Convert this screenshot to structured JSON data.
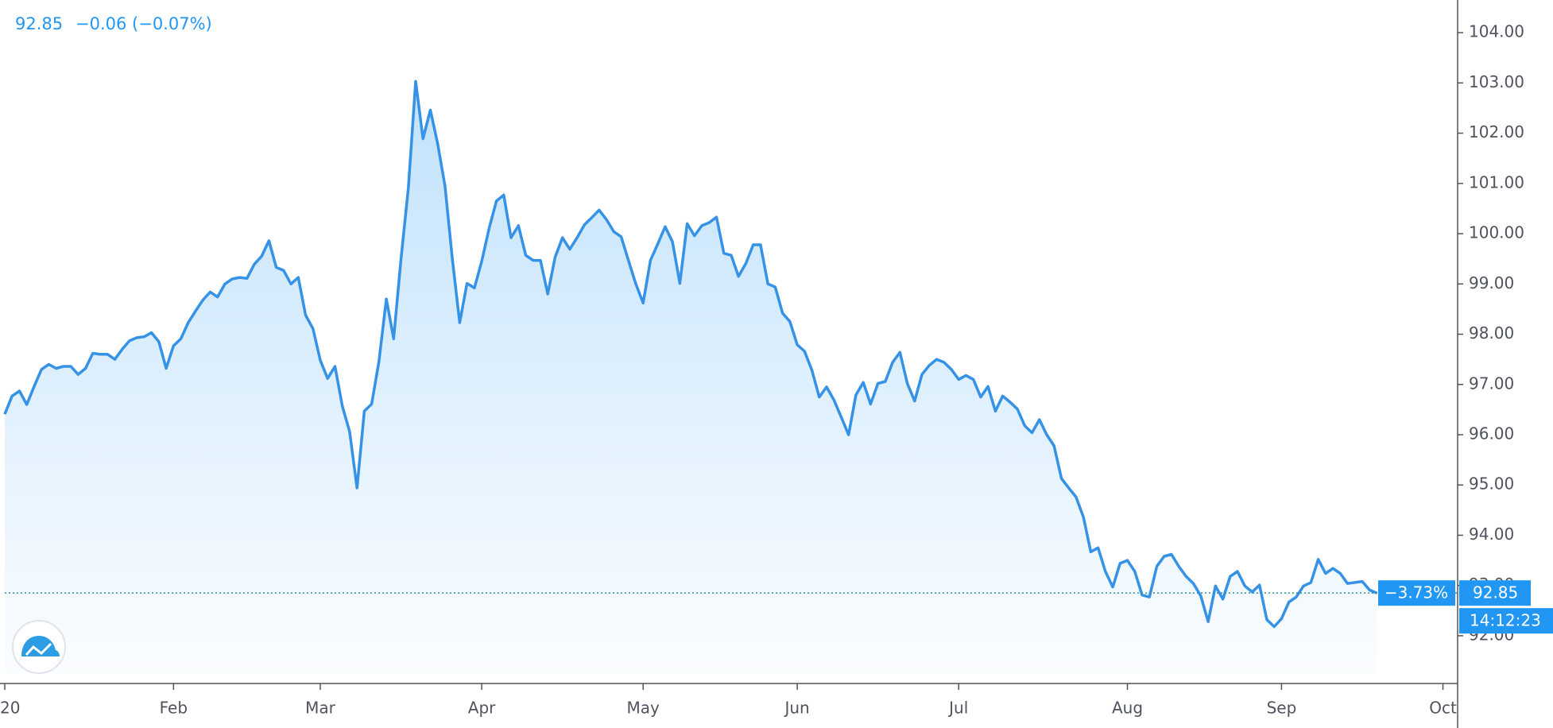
{
  "chart_data": {
    "type": "area",
    "price_label": "92.85",
    "change_label": "−0.06 (−0.07%)",
    "percent_label": "−3.73%",
    "time_label": "14:12:23",
    "color": "#3592e6",
    "last_line_color": "#2a8ea8",
    "values": [
      96.41,
      96.77,
      96.87,
      96.6,
      96.96,
      97.3,
      97.4,
      97.32,
      97.36,
      97.36,
      97.2,
      97.32,
      97.62,
      97.6,
      97.6,
      97.5,
      97.7,
      97.87,
      97.93,
      97.95,
      98.03,
      97.85,
      97.32,
      97.77,
      97.91,
      98.23,
      98.46,
      98.68,
      98.84,
      98.74,
      99.0,
      99.1,
      99.13,
      99.11,
      99.39,
      99.55,
      99.86,
      99.33,
      99.27,
      99.0,
      99.13,
      98.38,
      98.11,
      97.48,
      97.12,
      97.36,
      96.57,
      96.06,
      94.94,
      96.47,
      96.61,
      97.46,
      98.7,
      97.91,
      99.49,
      100.91,
      103.03,
      101.89,
      102.46,
      101.79,
      100.95,
      99.49,
      98.23,
      99.01,
      98.92,
      99.45,
      100.1,
      100.65,
      100.77,
      99.92,
      100.16,
      99.57,
      99.47,
      99.47,
      98.8,
      99.53,
      99.92,
      99.69,
      99.92,
      100.18,
      100.32,
      100.47,
      100.28,
      100.04,
      99.94,
      99.47,
      99.0,
      98.62,
      99.47,
      99.8,
      100.14,
      99.84,
      99.01,
      100.2,
      99.96,
      100.16,
      100.22,
      100.33,
      99.61,
      99.57,
      99.15,
      99.41,
      99.78,
      99.78,
      99.0,
      98.94,
      98.42,
      98.25,
      97.79,
      97.66,
      97.28,
      96.75,
      96.95,
      96.69,
      96.35,
      96.0,
      96.79,
      97.04,
      96.61,
      97.02,
      97.06,
      97.44,
      97.64,
      97.02,
      96.67,
      97.2,
      97.38,
      97.5,
      97.44,
      97.3,
      97.1,
      97.18,
      97.1,
      96.75,
      96.96,
      96.47,
      96.77,
      96.65,
      96.51,
      96.18,
      96.04,
      96.3,
      96.0,
      95.78,
      95.13,
      94.94,
      94.76,
      94.36,
      93.67,
      93.75,
      93.28,
      92.97,
      93.44,
      93.5,
      93.28,
      92.81,
      92.77,
      93.38,
      93.58,
      93.62,
      93.38,
      93.18,
      93.04,
      92.79,
      92.28,
      92.99,
      92.73,
      93.18,
      93.28,
      92.99,
      92.87,
      93.01,
      92.32,
      92.18,
      92.34,
      92.67,
      92.77,
      92.99,
      93.06,
      93.52,
      93.24,
      93.34,
      93.24,
      93.04,
      93.06,
      93.08,
      92.91,
      92.85
    ],
    "xlim": [
      0,
      198
    ],
    "xticks": [
      {
        "value": 0,
        "label": "20"
      },
      {
        "value": 23,
        "label": "Feb"
      },
      {
        "value": 43,
        "label": "Mar"
      },
      {
        "value": 65,
        "label": "Apr"
      },
      {
        "value": 87,
        "label": "May"
      },
      {
        "value": 108,
        "label": "Jun"
      },
      {
        "value": 130,
        "label": "Jul"
      },
      {
        "value": 153,
        "label": "Aug"
      },
      {
        "value": 174,
        "label": "Sep"
      },
      {
        "value": 196,
        "label": "Oct"
      }
    ],
    "ylim": [
      91.05,
      104.65
    ],
    "yticks": [
      {
        "value": 92,
        "label": "92.00"
      },
      {
        "value": 93,
        "label": "93.00"
      },
      {
        "value": 94,
        "label": "94.00"
      },
      {
        "value": 95,
        "label": "95.00"
      },
      {
        "value": 96,
        "label": "96.00"
      },
      {
        "value": 97,
        "label": "97.00"
      },
      {
        "value": 98,
        "label": "98.00"
      },
      {
        "value": 99,
        "label": "99.00"
      },
      {
        "value": 100,
        "label": "100.00"
      },
      {
        "value": 101,
        "label": "101.00"
      },
      {
        "value": 102,
        "label": "102.00"
      },
      {
        "value": 103,
        "label": "103.00"
      },
      {
        "value": 104,
        "label": "104.00"
      }
    ],
    "grid": false
  }
}
